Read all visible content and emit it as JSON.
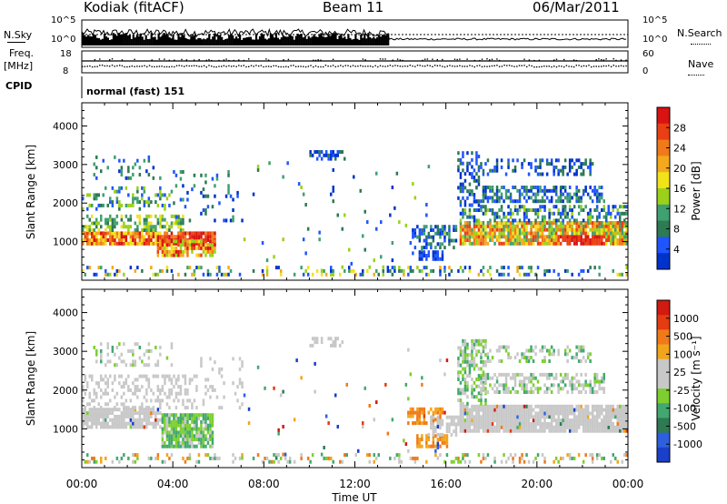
{
  "header": {
    "title": "Kodiak (fitACF)",
    "beam": "Beam 11",
    "date": "06/Mar/2011"
  },
  "params": {
    "nsky_label": "N.Sky",
    "nsearch_label": "N.Search",
    "noise_ticks": [
      "10^5",
      "10^0"
    ],
    "freq_label": "Freq.",
    "freq_unit": "[MHz]",
    "freq_ticks": [
      "18",
      "8"
    ],
    "nave_label": "Nave",
    "nave_ticks": [
      "60",
      "0"
    ],
    "cpid_label": "CPID",
    "cpid_value": "normal (fast) 151"
  },
  "colors": {
    "power_scale": [
      "#0033cc",
      "#1f55ff",
      "#2d7a53",
      "#3fa070",
      "#9bd11a",
      "#f2e21a",
      "#f4a91c",
      "#f07a1a",
      "#ea3f14",
      "#d91212"
    ],
    "velocity_scale": [
      "#1a3fc8",
      "#2d5fe0",
      "#2d7a53",
      "#42a870",
      "#7ccf2f",
      "#c8c8c8",
      "#c8c8c8",
      "#f2a51a",
      "#f07a1a",
      "#e43c10",
      "#d11a10"
    ]
  },
  "chart_data": [
    {
      "type": "heatmap",
      "name": "power",
      "xlabel": "",
      "ylabel": "Slant Range [km]",
      "xlim": [
        0,
        24
      ],
      "ylim": [
        0,
        4600
      ],
      "yticks": [
        "4000",
        "3000",
        "2000",
        "1000"
      ],
      "colorbar_label": "Power [dB]",
      "colorbar_ticks": [
        "28",
        "24",
        "20",
        "16",
        "12",
        "8",
        "4"
      ]
    },
    {
      "type": "heatmap",
      "name": "velocity",
      "xlabel": "Time UT",
      "ylabel": "Slant Range [km]",
      "xlim": [
        0,
        24
      ],
      "ylim": [
        0,
        4600
      ],
      "xticks": [
        "00:00",
        "04:00",
        "08:00",
        "12:00",
        "16:00",
        "20:00",
        "00:00"
      ],
      "yticks": [
        "4000",
        "3000",
        "2000",
        "1000"
      ],
      "colorbar_label": "Velocity [m s⁻¹]",
      "colorbar_ticks": [
        "1000",
        "500",
        "100",
        "25",
        "-25",
        "-100",
        "-500",
        "-1000"
      ]
    }
  ]
}
